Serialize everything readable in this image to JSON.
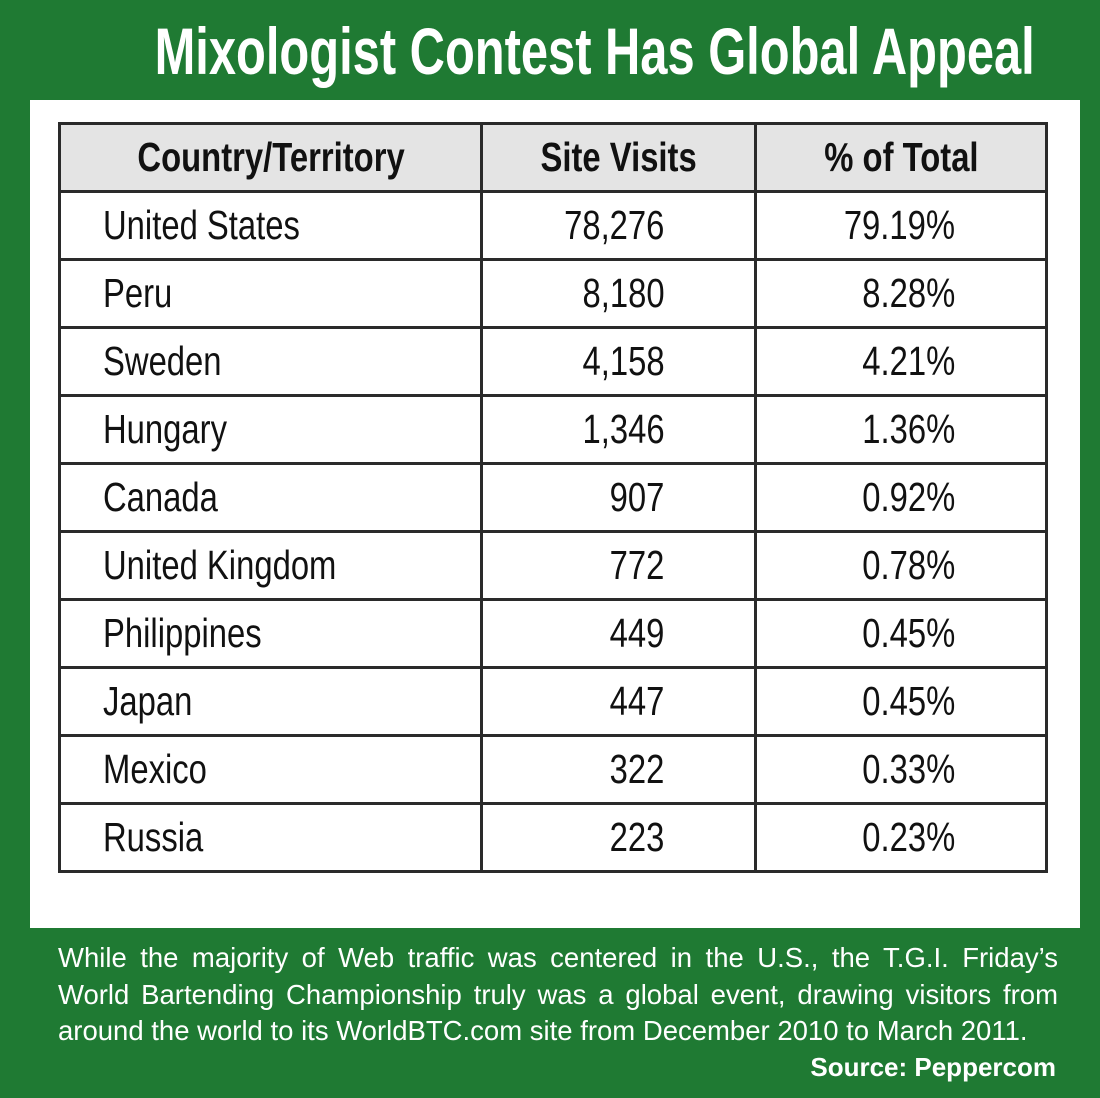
{
  "header": {
    "title": "Mixologist Contest Has Global Appeal"
  },
  "table": {
    "columns": [
      "Country/Territory",
      "Site Visits",
      "% of Total"
    ],
    "rows": [
      [
        "United States",
        "78,276",
        "79.19%"
      ],
      [
        "Peru",
        "8,180",
        "8.28%"
      ],
      [
        "Sweden",
        "4,158",
        "4.21%"
      ],
      [
        "Hungary",
        "1,346",
        "1.36%"
      ],
      [
        "Canada",
        "907",
        "0.92%"
      ],
      [
        "United Kingdom",
        "772",
        "0.78%"
      ],
      [
        "Philippines",
        "449",
        "0.45%"
      ],
      [
        "Japan",
        "447",
        "0.45%"
      ],
      [
        "Mexico",
        "322",
        "0.33%"
      ],
      [
        "Russia",
        "223",
        "0.23%"
      ]
    ]
  },
  "footer": {
    "caption": "While the majority of Web traffic was centered in the U.S., the T.G.I. Friday’s World Bartending Championship truly was a global event, drawing visitors from around the world to its WorldBTC.com site from December 2010 to March 2011.",
    "source": "Source: Peppercom"
  }
}
